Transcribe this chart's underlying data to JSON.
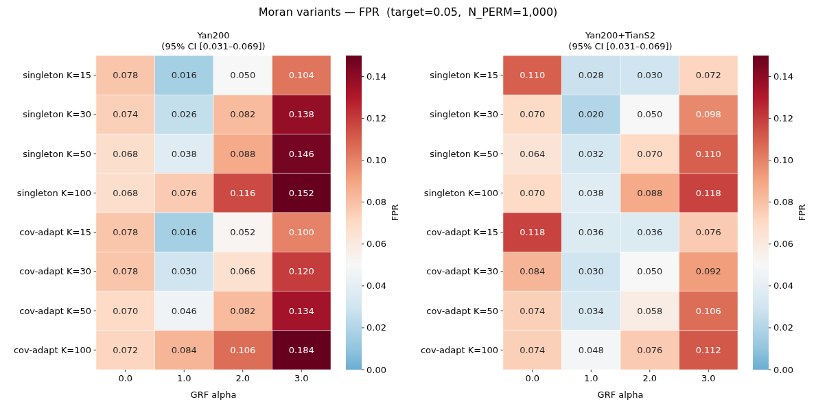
{
  "chart_data": [
    {
      "type": "heatmap",
      "title": "Yan200",
      "subtitle": "(95% CI [0.031–0.069])",
      "xlabel": "GRF alpha",
      "clabel": "FPR",
      "annotations": [
        "Moran variants — FPR  (target=0.05,  N_PERM=1,000)"
      ],
      "categories": [
        "0.0",
        "1.0",
        "2.0",
        "3.0"
      ],
      "y_categories": [
        "singleton K=15",
        "singleton K=30",
        "singleton K=50",
        "singleton K=100",
        "cov-adapt K=15",
        "cov-adapt K=30",
        "cov-adapt K=50",
        "cov-adapt K=100"
      ],
      "cells": [
        [
          0.078,
          0.016,
          0.05,
          0.104
        ],
        [
          0.074,
          0.026,
          0.082,
          0.138
        ],
        [
          0.068,
          0.038,
          0.088,
          0.146
        ],
        [
          0.068,
          0.076,
          0.116,
          0.152
        ],
        [
          0.078,
          0.016,
          0.052,
          0.1
        ],
        [
          0.078,
          0.03,
          0.066,
          0.12
        ],
        [
          0.07,
          0.046,
          0.082,
          0.134
        ],
        [
          0.072,
          0.084,
          0.106,
          0.184
        ]
      ],
      "cell_labels": [
        [
          "0.078",
          "0.016",
          "0.050",
          "0.104"
        ],
        [
          "0.074",
          "0.026",
          "0.082",
          "0.138"
        ],
        [
          "0.068",
          "0.038",
          "0.088",
          "0.146"
        ],
        [
          "0.068",
          "0.076",
          "0.116",
          "0.152"
        ],
        [
          "0.078",
          "0.016",
          "0.052",
          "0.100"
        ],
        [
          "0.078",
          "0.030",
          "0.066",
          "0.120"
        ],
        [
          "0.070",
          "0.046",
          "0.082",
          "0.134"
        ],
        [
          "0.072",
          "0.084",
          "0.106",
          "0.184"
        ]
      ],
      "clim": [
        0,
        0.15
      ],
      "cticks": [
        {
          "value": 0,
          "label": "0.00"
        },
        {
          "value": 0.02,
          "label": "0.02"
        },
        {
          "value": 0.04,
          "label": "0.04"
        },
        {
          "value": 0.06,
          "label": "0.06"
        },
        {
          "value": 0.08,
          "label": "0.08"
        },
        {
          "value": 0.1,
          "label": "0.10"
        },
        {
          "value": 0.12,
          "label": "0.12"
        },
        {
          "value": 0.14,
          "label": "0.14"
        }
      ]
    },
    {
      "type": "heatmap",
      "title": "Yan200+TianS2",
      "subtitle": "(95% CI [0.031–0.069])",
      "xlabel": "GRF alpha",
      "clabel": "FPR",
      "categories": [
        "0.0",
        "1.0",
        "2.0",
        "3.0"
      ],
      "y_categories": [
        "singleton K=15",
        "singleton K=30",
        "singleton K=50",
        "singleton K=100",
        "cov-adapt K=15",
        "cov-adapt K=30",
        "cov-adapt K=50",
        "cov-adapt K=100"
      ],
      "cells": [
        [
          0.11,
          0.028,
          0.03,
          0.072
        ],
        [
          0.07,
          0.02,
          0.05,
          0.098
        ],
        [
          0.064,
          0.032,
          0.07,
          0.11
        ],
        [
          0.07,
          0.038,
          0.088,
          0.118
        ],
        [
          0.118,
          0.036,
          0.036,
          0.076
        ],
        [
          0.084,
          0.03,
          0.05,
          0.092
        ],
        [
          0.074,
          0.034,
          0.058,
          0.106
        ],
        [
          0.074,
          0.048,
          0.076,
          0.112
        ]
      ],
      "cell_labels": [
        [
          "0.110",
          "0.028",
          "0.030",
          "0.072"
        ],
        [
          "0.070",
          "0.020",
          "0.050",
          "0.098"
        ],
        [
          "0.064",
          "0.032",
          "0.070",
          "0.110"
        ],
        [
          "0.070",
          "0.038",
          "0.088",
          "0.118"
        ],
        [
          "0.118",
          "0.036",
          "0.036",
          "0.076"
        ],
        [
          "0.084",
          "0.030",
          "0.050",
          "0.092"
        ],
        [
          "0.074",
          "0.034",
          "0.058",
          "0.106"
        ],
        [
          "0.074",
          "0.048",
          "0.076",
          "0.112"
        ]
      ],
      "clim": [
        0,
        0.15
      ],
      "cticks": [
        {
          "value": 0,
          "label": "0.00"
        },
        {
          "value": 0.02,
          "label": "0.02"
        },
        {
          "value": 0.04,
          "label": "0.04"
        },
        {
          "value": 0.06,
          "label": "0.06"
        },
        {
          "value": 0.08,
          "label": "0.08"
        },
        {
          "value": 0.1,
          "label": "0.10"
        },
        {
          "value": 0.12,
          "label": "0.12"
        },
        {
          "value": 0.14,
          "label": "0.14"
        }
      ]
    }
  ]
}
